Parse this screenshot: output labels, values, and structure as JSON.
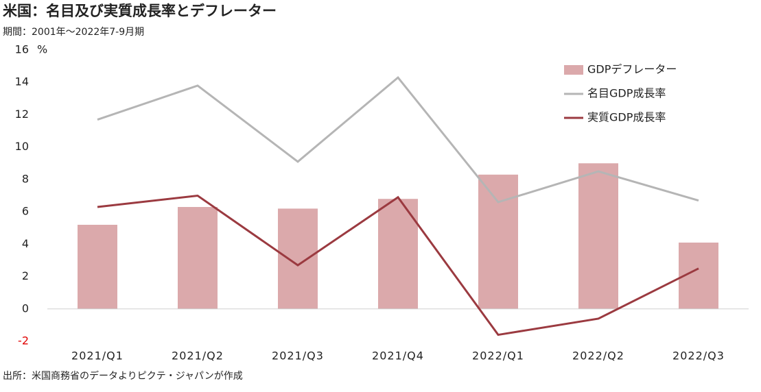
{
  "chart_data": {
    "type": "bar_line",
    "title": "米国：名目及び実質成長率とデフレーター",
    "subtitle": "期間：2001年～2022年7-9月期",
    "source": "出所：米国商務省のデータよりピクテ・ジャパンが作成",
    "y_unit": "%",
    "categories": [
      "2021/Q1",
      "2021/Q2",
      "2021/Q3",
      "2021/Q4",
      "2022/Q1",
      "2022/Q2",
      "2022/Q3"
    ],
    "series": [
      {
        "name": "GDPデフレーター",
        "type": "bar",
        "color": "#dba9ab",
        "values": [
          5.2,
          6.3,
          6.2,
          6.8,
          8.3,
          9.0,
          4.1
        ]
      },
      {
        "name": "名目GDP成長率",
        "type": "line",
        "color": "#b5b5b5",
        "values": [
          11.7,
          13.8,
          9.1,
          14.3,
          6.6,
          8.5,
          6.7
        ]
      },
      {
        "name": "実質GDP成長率",
        "type": "line",
        "color": "#9b3a40",
        "values": [
          6.3,
          7.0,
          2.7,
          6.9,
          -1.6,
          -0.6,
          2.5
        ]
      }
    ],
    "ylim": [
      -2,
      16
    ],
    "yticks": [
      -2,
      0,
      2,
      4,
      6,
      8,
      10,
      12,
      14,
      16
    ],
    "negative_tick_color": "#e00000",
    "legend": "top-right",
    "grid": false
  }
}
